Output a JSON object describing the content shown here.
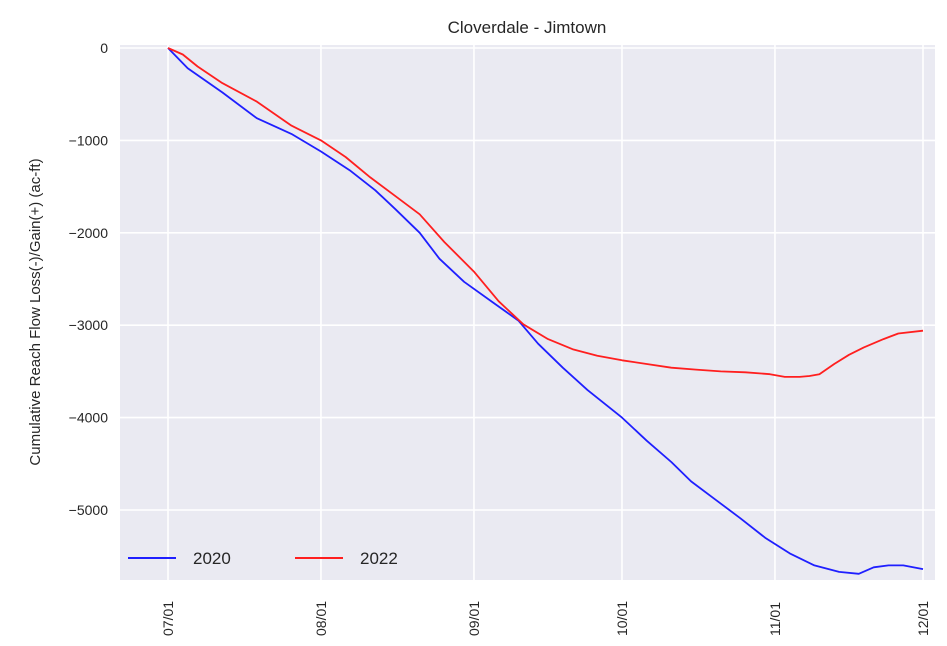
{
  "chart_data": {
    "type": "line",
    "title": "Cloverdale - Jimtown",
    "xlabel": "",
    "ylabel": "Cumulative Reach Flow Loss(-)/Gain(+) (ac-ft)",
    "x_type": "date",
    "xlim": [
      "2023-07-01",
      "2023-12-01"
    ],
    "ylim": [
      -5800,
      0
    ],
    "x_ticks": [
      {
        "date": "2023-07-01",
        "label": "07/01"
      },
      {
        "date": "2023-08-01",
        "label": "08/01"
      },
      {
        "date": "2023-09-01",
        "label": "09/01"
      },
      {
        "date": "2023-10-01",
        "label": "10/01"
      },
      {
        "date": "2023-11-01",
        "label": "11/01"
      },
      {
        "date": "2023-12-01",
        "label": "12/01"
      }
    ],
    "y_ticks": [
      0,
      -1000,
      -2000,
      -3000,
      -4000,
      -5000
    ],
    "y_tick_labels": [
      "0",
      "−1000",
      "−2000",
      "−3000",
      "−4000",
      "−5000"
    ],
    "grid": true,
    "legend_position": "lower-left",
    "series": [
      {
        "name": "2020",
        "color": "#1f1fff",
        "points": [
          [
            "2023-07-01",
            0
          ],
          [
            "2023-07-05",
            -220
          ],
          [
            "2023-07-12",
            -480
          ],
          [
            "2023-07-19",
            -760
          ],
          [
            "2023-07-26",
            -930
          ],
          [
            "2023-08-01",
            -1120
          ],
          [
            "2023-08-07",
            -1330
          ],
          [
            "2023-08-12",
            -1540
          ],
          [
            "2023-08-16",
            -1740
          ],
          [
            "2023-08-21",
            -2000
          ],
          [
            "2023-08-25",
            -2280
          ],
          [
            "2023-08-30",
            -2530
          ],
          [
            "2023-09-05",
            -2760
          ],
          [
            "2023-09-10",
            -2950
          ],
          [
            "2023-09-14",
            -3200
          ],
          [
            "2023-09-19",
            -3460
          ],
          [
            "2023-09-24",
            -3700
          ],
          [
            "2023-10-01",
            -4000
          ],
          [
            "2023-10-06",
            -4250
          ],
          [
            "2023-10-11",
            -4480
          ],
          [
            "2023-10-15",
            -4690
          ],
          [
            "2023-10-20",
            -4890
          ],
          [
            "2023-10-25",
            -5090
          ],
          [
            "2023-10-30",
            -5300
          ],
          [
            "2023-11-04",
            -5470
          ],
          [
            "2023-11-09",
            -5600
          ],
          [
            "2023-11-14",
            -5670
          ],
          [
            "2023-11-18",
            -5690
          ],
          [
            "2023-11-21",
            -5620
          ],
          [
            "2023-11-24",
            -5600
          ],
          [
            "2023-11-27",
            -5600
          ],
          [
            "2023-12-01",
            -5640
          ]
        ]
      },
      {
        "name": "2022",
        "color": "#ff1f1f",
        "points": [
          [
            "2023-07-01",
            0
          ],
          [
            "2023-07-04",
            -70
          ],
          [
            "2023-07-07",
            -200
          ],
          [
            "2023-07-12",
            -380
          ],
          [
            "2023-07-19",
            -580
          ],
          [
            "2023-07-26",
            -840
          ],
          [
            "2023-08-01",
            -1000
          ],
          [
            "2023-08-06",
            -1180
          ],
          [
            "2023-08-11",
            -1400
          ],
          [
            "2023-08-16",
            -1600
          ],
          [
            "2023-08-21",
            -1800
          ],
          [
            "2023-08-26",
            -2100
          ],
          [
            "2023-09-01",
            -2420
          ],
          [
            "2023-09-06",
            -2740
          ],
          [
            "2023-09-11",
            -2990
          ],
          [
            "2023-09-16",
            -3150
          ],
          [
            "2023-09-21",
            -3260
          ],
          [
            "2023-09-26",
            -3330
          ],
          [
            "2023-10-01",
            -3380
          ],
          [
            "2023-10-06",
            -3420
          ],
          [
            "2023-10-11",
            -3460
          ],
          [
            "2023-10-16",
            -3480
          ],
          [
            "2023-10-21",
            -3500
          ],
          [
            "2023-10-26",
            -3510
          ],
          [
            "2023-10-31",
            -3530
          ],
          [
            "2023-11-03",
            -3560
          ],
          [
            "2023-11-06",
            -3560
          ],
          [
            "2023-11-08",
            -3550
          ],
          [
            "2023-11-10",
            -3530
          ],
          [
            "2023-11-13",
            -3420
          ],
          [
            "2023-11-16",
            -3320
          ],
          [
            "2023-11-19",
            -3240
          ],
          [
            "2023-11-23",
            -3150
          ],
          [
            "2023-11-26",
            -3090
          ],
          [
            "2023-12-01",
            -3060
          ]
        ]
      }
    ]
  }
}
